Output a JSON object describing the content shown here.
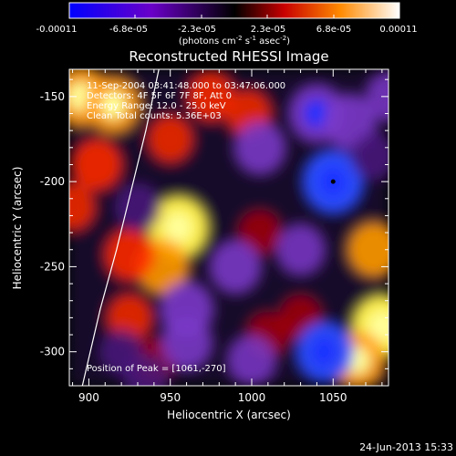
{
  "colorbar": {
    "tick_labels": [
      "-0.00011",
      "-6.8e-05",
      "-2.3e-05",
      "2.3e-05",
      "6.8e-05",
      "0.00011"
    ],
    "unit_label": "(photons cm",
    "unit_sup1": "-2",
    "unit_mid": " s",
    "unit_sup2": "-1",
    "unit_mid2": " asec",
    "unit_sup3": "-2",
    "unit_end": ")"
  },
  "chart_data": {
    "type": "heatmap",
    "title": "Reconstructed RHESSI Image",
    "xlabel": "Heliocentric X (arcsec)",
    "ylabel": "Heliocentric Y (arcsec)",
    "xlim": [
      888,
      1084
    ],
    "ylim": [
      -320,
      -134
    ],
    "xticks": [
      900,
      950,
      1000,
      1050
    ],
    "xtick_labels": [
      "900",
      "950",
      "1000",
      "1050"
    ],
    "yticks": [
      -150,
      -200,
      -250,
      -300
    ],
    "ytick_labels": [
      "-150",
      "-200",
      "-250",
      "-300"
    ],
    "colorbar_range": [
      -0.00011,
      0.00011
    ],
    "annotations": [
      "11-Sep-2004 03:41:48.000 to 03:47:06.000",
      "Detectors: 4F 5F 6F 7F 8F, Att 0",
      "Energy Range: 12.0 - 25.0 keV",
      "Clean    Total counts: 5.36E+03"
    ],
    "peak_label": "Position of Peak = [1061,-270]",
    "peak_position": [
      1061,
      -270
    ],
    "blobs": [
      {
        "x": 895,
        "y": -150,
        "value": 9e-05
      },
      {
        "x": 915,
        "y": -155,
        "value": 8e-05
      },
      {
        "x": 905,
        "y": -190,
        "value": 6e-05
      },
      {
        "x": 890,
        "y": -215,
        "value": 4e-05
      },
      {
        "x": 950,
        "y": -175,
        "value": 4e-05
      },
      {
        "x": 955,
        "y": -227,
        "value": 0.0001
      },
      {
        "x": 945,
        "y": -250,
        "value": 7e-05
      },
      {
        "x": 925,
        "y": -243,
        "value": 6e-05
      },
      {
        "x": 975,
        "y": -150,
        "value": 5e-05
      },
      {
        "x": 998,
        "y": -160,
        "value": 4e-05
      },
      {
        "x": 925,
        "y": -280,
        "value": 4e-05
      },
      {
        "x": 1005,
        "y": -230,
        "value": 3e-05
      },
      {
        "x": 1010,
        "y": -290,
        "value": 3e-05
      },
      {
        "x": 1075,
        "y": -240,
        "value": 7e-05
      },
      {
        "x": 1080,
        "y": -285,
        "value": 0.0001
      },
      {
        "x": 1065,
        "y": -305,
        "value": 8e-05
      },
      {
        "x": 1030,
        "y": -280,
        "value": 3e-05
      },
      {
        "x": 940,
        "y": -305,
        "value": 3e-05
      },
      {
        "x": 1050,
        "y": -200,
        "value": -0.0001
      },
      {
        "x": 1040,
        "y": -160,
        "value": -8e-05
      },
      {
        "x": 1060,
        "y": -165,
        "value": -7e-05
      },
      {
        "x": 1005,
        "y": -180,
        "value": -6e-05
      },
      {
        "x": 990,
        "y": -250,
        "value": -6e-05
      },
      {
        "x": 1030,
        "y": -240,
        "value": -5e-05
      },
      {
        "x": 960,
        "y": -275,
        "value": -7e-05
      },
      {
        "x": 960,
        "y": -295,
        "value": -6e-05
      },
      {
        "x": 1000,
        "y": -305,
        "value": -5e-05
      },
      {
        "x": 1045,
        "y": -300,
        "value": -9e-05
      },
      {
        "x": 930,
        "y": -215,
        "value": -4e-05
      },
      {
        "x": 935,
        "y": -315,
        "value": -4e-05
      },
      {
        "x": 1075,
        "y": -185,
        "value": -4e-05
      },
      {
        "x": 1085,
        "y": -150,
        "value": -5e-05
      },
      {
        "x": 920,
        "y": -300,
        "value": -3e-05
      }
    ],
    "limb_curve": [
      [
        943,
        -134
      ],
      [
        935,
        -170
      ],
      [
        926,
        -205
      ],
      [
        917,
        -240
      ],
      [
        907,
        -275
      ],
      [
        896,
        -320
      ]
    ]
  },
  "timestamp": "24-Jun-2013 15:33"
}
